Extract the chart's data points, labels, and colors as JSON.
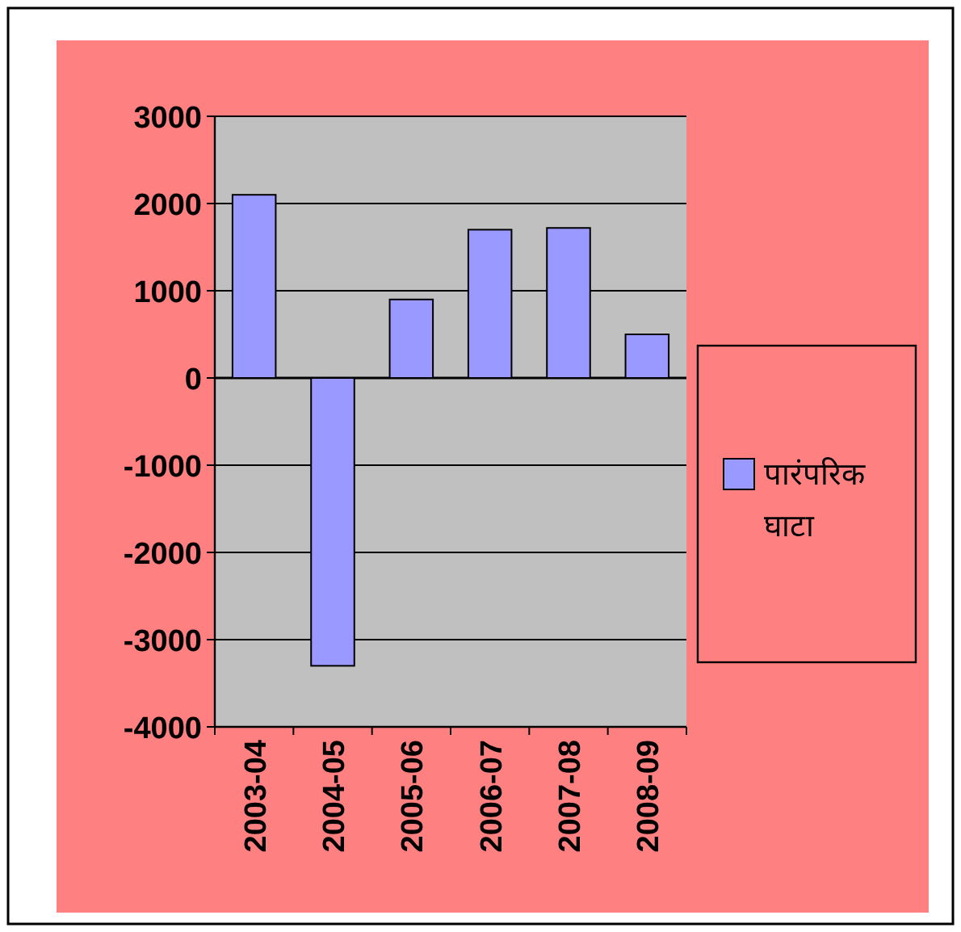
{
  "chart_data": {
    "type": "bar",
    "categories": [
      "2003-04",
      "2004-05",
      "2005-06",
      "2006-07",
      "2007-08",
      "2008-09"
    ],
    "series": [
      {
        "name": "पारंपरिक घाटा",
        "color": "#9999ff",
        "values": [
          2100,
          -3300,
          900,
          1700,
          1720,
          500
        ]
      }
    ],
    "ylim": [
      -4000,
      3000
    ],
    "yticks": [
      -4000,
      -3000,
      -2000,
      -1000,
      0,
      1000,
      2000,
      3000
    ],
    "grid": "y",
    "legend": "right"
  }
}
